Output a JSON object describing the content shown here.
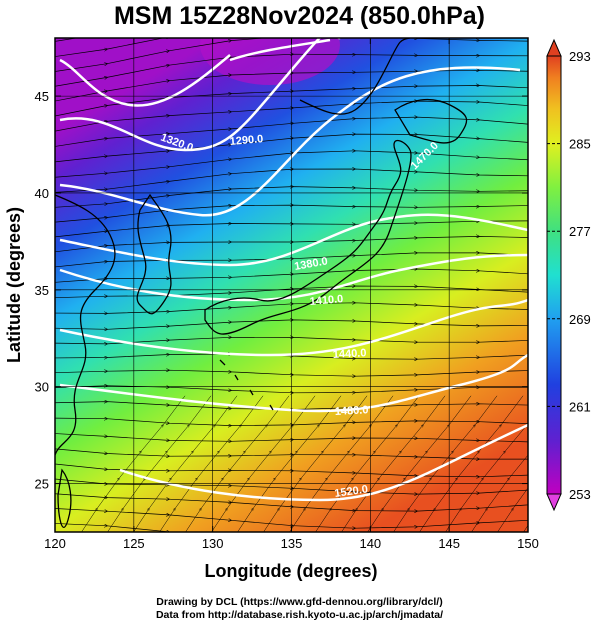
{
  "title": "MSM 15Z28Nov2024 (850.0hPa)",
  "xlabel": "Longitude (degrees)",
  "ylabel": "Latitude  (degrees)",
  "x_ticks": [
    120,
    125,
    130,
    135,
    140,
    145,
    150
  ],
  "y_ticks": [
    25,
    30,
    35,
    40,
    45
  ],
  "colorbar": {
    "ticks": [
      293,
      285,
      277,
      269,
      261,
      253
    ],
    "range": [
      253,
      293
    ],
    "colors": [
      "#c000c0",
      "#6020d0",
      "#2040e0",
      "#20a0f0",
      "#20e0d0",
      "#40e080",
      "#80f040",
      "#e0f020",
      "#f0c020",
      "#f08020",
      "#e04020"
    ]
  },
  "contours": [
    {
      "label": "1320.0"
    },
    {
      "label": "1290.0"
    },
    {
      "label": "1380.0"
    },
    {
      "label": "1410.0"
    },
    {
      "label": "1440.0"
    },
    {
      "label": "1470.0"
    },
    {
      "label": "1480.0"
    },
    {
      "label": "1520.0"
    }
  ],
  "credits": {
    "line1": "Drawing by DCL (https://www.gfd-dennou.org/library/dcl/)",
    "line2": "Data from http://database.rish.kyoto-u.ac.jp/arch/jmadata/"
  }
}
